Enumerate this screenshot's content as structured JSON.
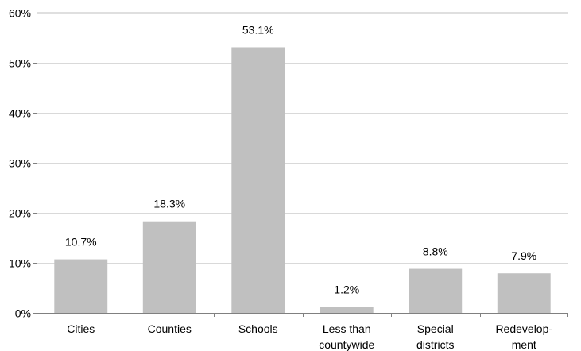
{
  "chart_data": {
    "type": "bar",
    "categories": [
      [
        "Cities"
      ],
      [
        "Counties"
      ],
      [
        "Schools"
      ],
      [
        "Less than",
        "countywide"
      ],
      [
        "Special",
        "districts"
      ],
      [
        "Redevelop-",
        "ment"
      ]
    ],
    "values": [
      10.7,
      18.3,
      53.1,
      1.2,
      8.8,
      7.9
    ],
    "data_labels": [
      "10.7%",
      "18.3%",
      "53.1%",
      "1.2%",
      "8.8%",
      "7.9%"
    ],
    "y_ticks": [
      0,
      10,
      20,
      30,
      40,
      50,
      60
    ],
    "y_tick_labels": [
      "0%",
      "10%",
      "20%",
      "30%",
      "40%",
      "50%",
      "60%"
    ],
    "ylim": [
      0,
      60
    ],
    "grid": true,
    "legend": "none",
    "colors": {
      "bar": "#c0c0c0",
      "grid": "#d9d9d9",
      "axis": "#808080",
      "text": "#000000"
    }
  }
}
